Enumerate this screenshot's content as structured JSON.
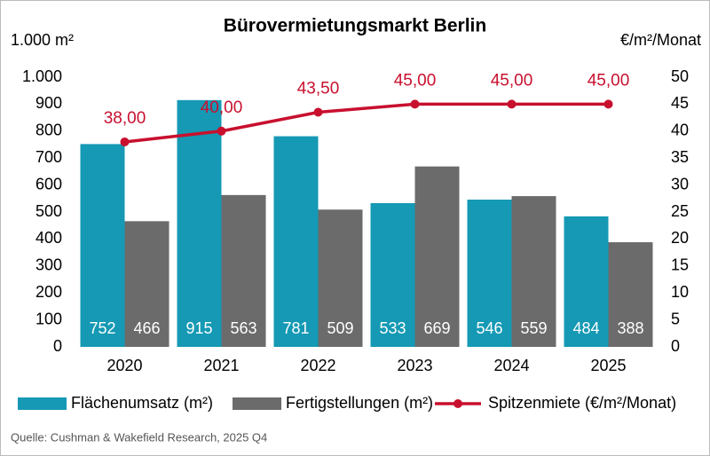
{
  "chart_data": {
    "type": "bar-line",
    "title": "Bürovermietungsmarkt Berlin",
    "y_label": "1.000 m²",
    "y2_label": "€/m²/Monat",
    "categories": [
      "2020",
      "2021",
      "2022",
      "2023",
      "2024",
      "2025"
    ],
    "series": [
      {
        "name": "Flächenumsatz (m²)",
        "color": "#1599b4",
        "type": "bar",
        "values": [
          752,
          915,
          781,
          533,
          546,
          484
        ]
      },
      {
        "name": "Fertigstellungen (m²)",
        "color": "#6b6b6b",
        "type": "bar",
        "values": [
          466,
          563,
          509,
          669,
          559,
          388
        ]
      },
      {
        "name": "Spitzenmiete (€/m²/Monat)",
        "color": "#c8102e",
        "type": "line",
        "axis": "y2",
        "values": [
          38,
          40,
          43.5,
          45,
          45,
          45
        ],
        "value_labels": [
          "38,00",
          "40,00",
          "43,50",
          "45,00",
          "45,00",
          "45,00"
        ]
      }
    ],
    "ylim": [
      0,
      1000
    ],
    "yticks": [
      0,
      100,
      200,
      300,
      400,
      500,
      600,
      700,
      800,
      900,
      {
        "value": 1000,
        "label": "1.000"
      }
    ],
    "y2lim": [
      0,
      50
    ],
    "y2ticks": [
      0,
      5,
      10,
      15,
      20,
      25,
      30,
      35,
      40,
      45,
      50
    ],
    "grid": false,
    "legend": "bottom",
    "source": "Quelle: Cushman & Wakefield Research, 2025 Q4"
  }
}
